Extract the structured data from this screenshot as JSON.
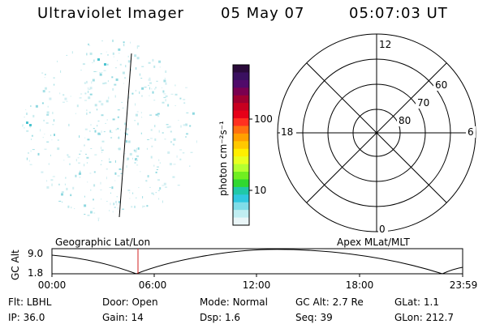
{
  "header": {
    "title": "Ultraviolet Imager",
    "date": "05 May 07",
    "time": "05:07:03 UT"
  },
  "colorbar": {
    "label": "photon cm⁻²s⁻¹",
    "ticks": [
      "100",
      "10"
    ],
    "colors": [
      "#2a0a3a",
      "#3a1060",
      "#500a6a",
      "#7a0050",
      "#a00030",
      "#c80020",
      "#e60018",
      "#ff3020",
      "#ff7010",
      "#ffa000",
      "#ffc800",
      "#ffee00",
      "#e8ff20",
      "#b4ff30",
      "#70ee20",
      "#30d830",
      "#20c8a8",
      "#30c8e0",
      "#80dde8",
      "#c0eef2",
      "#eaf6f8"
    ]
  },
  "polar": {
    "mlt_labels": [
      "12",
      "18",
      "6",
      "0"
    ],
    "lat_labels": [
      "60",
      "70",
      "80"
    ]
  },
  "timeline": {
    "left_label": "Geographic Lat/Lon",
    "right_label": "Apex MLat/MLT",
    "ylabel": "GC Alt",
    "y_ticks": [
      "9.0",
      "1.8"
    ],
    "x_ticks": [
      "00:00",
      "06:00",
      "12:00",
      "18:00",
      "23:59"
    ]
  },
  "footer": {
    "flt_label": "Flt:",
    "flt_value": "LBHL",
    "ip_label": "IP:",
    "ip_value": "36.0",
    "door_label": "Door:",
    "door_value": "Open",
    "gain_label": "Gain:",
    "gain_value": "14",
    "mode_label": "Mode:",
    "mode_value": "Normal",
    "dsp_label": "Dsp:",
    "dsp_value": "1.6",
    "gcalt_label": "GC Alt:",
    "gcalt_value": "2.7 Re",
    "seq_label": "Seq:",
    "seq_value": "39",
    "glat_label": "GLat:",
    "glat_value": "1.1",
    "glon_label": "GLon:",
    "glon_value": "212.7"
  }
}
